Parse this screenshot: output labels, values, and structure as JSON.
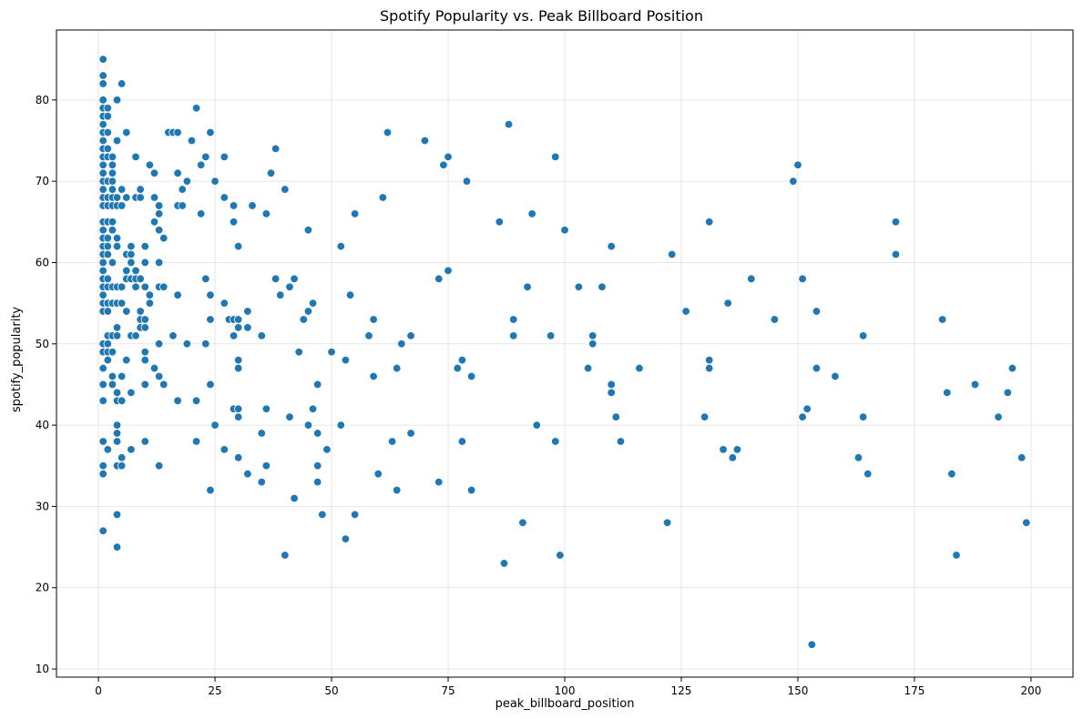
{
  "chart_data": {
    "type": "scatter",
    "title": "Spotify Popularity vs. Peak Billboard Position",
    "xlabel": "peak_billboard_position",
    "ylabel": "spotify_popularity",
    "xlim": [
      -9,
      209
    ],
    "ylim": [
      9,
      88.6
    ],
    "xticks": [
      0,
      25,
      50,
      75,
      100,
      125,
      150,
      175,
      200
    ],
    "yticks": [
      10,
      20,
      30,
      40,
      50,
      60,
      70,
      80
    ],
    "grid": true,
    "color": "#1f77b4",
    "points": [
      [
        1,
        85
      ],
      [
        1,
        83
      ],
      [
        1,
        82
      ],
      [
        1,
        80
      ],
      [
        1,
        79
      ],
      [
        1,
        78
      ],
      [
        1,
        77
      ],
      [
        1,
        76
      ],
      [
        1,
        75
      ],
      [
        1,
        74
      ],
      [
        1,
        73
      ],
      [
        1,
        72
      ],
      [
        1,
        71
      ],
      [
        1,
        70
      ],
      [
        1,
        69
      ],
      [
        1,
        68
      ],
      [
        1,
        67
      ],
      [
        1,
        65
      ],
      [
        1,
        64
      ],
      [
        1,
        63
      ],
      [
        1,
        62
      ],
      [
        1,
        61
      ],
      [
        1,
        60
      ],
      [
        1,
        59
      ],
      [
        1,
        58
      ],
      [
        1,
        57
      ],
      [
        1,
        56
      ],
      [
        1,
        55
      ],
      [
        1,
        54
      ],
      [
        1,
        50
      ],
      [
        1,
        49
      ],
      [
        1,
        47
      ],
      [
        1,
        45
      ],
      [
        1,
        43
      ],
      [
        1,
        38
      ],
      [
        1,
        35
      ],
      [
        1,
        34
      ],
      [
        1,
        27
      ],
      [
        2,
        79
      ],
      [
        2,
        78
      ],
      [
        2,
        76
      ],
      [
        2,
        74
      ],
      [
        2,
        73
      ],
      [
        2,
        70
      ],
      [
        2,
        68
      ],
      [
        2,
        67
      ],
      [
        2,
        65
      ],
      [
        2,
        63
      ],
      [
        2,
        62
      ],
      [
        2,
        61
      ],
      [
        2,
        58
      ],
      [
        2,
        57
      ],
      [
        2,
        55
      ],
      [
        2,
        54
      ],
      [
        2,
        51
      ],
      [
        2,
        50
      ],
      [
        2,
        49
      ],
      [
        2,
        48
      ],
      [
        2,
        37
      ],
      [
        3,
        73
      ],
      [
        3,
        72
      ],
      [
        3,
        71
      ],
      [
        3,
        70
      ],
      [
        3,
        69
      ],
      [
        3,
        68
      ],
      [
        3,
        67
      ],
      [
        3,
        65
      ],
      [
        3,
        64
      ],
      [
        3,
        60
      ],
      [
        3,
        57
      ],
      [
        3,
        55
      ],
      [
        3,
        51
      ],
      [
        3,
        49
      ],
      [
        3,
        46
      ],
      [
        3,
        45
      ],
      [
        4,
        80
      ],
      [
        4,
        75
      ],
      [
        4,
        68
      ],
      [
        4,
        67
      ],
      [
        4,
        63
      ],
      [
        4,
        62
      ],
      [
        4,
        57
      ],
      [
        4,
        55
      ],
      [
        4,
        52
      ],
      [
        4,
        51
      ],
      [
        4,
        44
      ],
      [
        4,
        43
      ],
      [
        4,
        40
      ],
      [
        4,
        39
      ],
      [
        4,
        38
      ],
      [
        4,
        35
      ],
      [
        4,
        29
      ],
      [
        4,
        25
      ],
      [
        5,
        82
      ],
      [
        5,
        69
      ],
      [
        5,
        67
      ],
      [
        5,
        57
      ],
      [
        5,
        55
      ],
      [
        5,
        46
      ],
      [
        5,
        43
      ],
      [
        5,
        36
      ],
      [
        5,
        35
      ],
      [
        6,
        76
      ],
      [
        6,
        68
      ],
      [
        6,
        61
      ],
      [
        6,
        59
      ],
      [
        6,
        58
      ],
      [
        6,
        54
      ],
      [
        6,
        48
      ],
      [
        7,
        62
      ],
      [
        7,
        61
      ],
      [
        7,
        60
      ],
      [
        7,
        58
      ],
      [
        7,
        51
      ],
      [
        7,
        44
      ],
      [
        7,
        37
      ],
      [
        8,
        73
      ],
      [
        8,
        68
      ],
      [
        8,
        59
      ],
      [
        8,
        58
      ],
      [
        8,
        57
      ],
      [
        8,
        51
      ],
      [
        9,
        69
      ],
      [
        9,
        68
      ],
      [
        9,
        58
      ],
      [
        9,
        54
      ],
      [
        9,
        53
      ],
      [
        9,
        52
      ],
      [
        10,
        62
      ],
      [
        10,
        60
      ],
      [
        10,
        57
      ],
      [
        10,
        53
      ],
      [
        10,
        52
      ],
      [
        10,
        49
      ],
      [
        10,
        48
      ],
      [
        10,
        45
      ],
      [
        10,
        38
      ],
      [
        11,
        72
      ],
      [
        11,
        56
      ],
      [
        11,
        55
      ],
      [
        12,
        71
      ],
      [
        12,
        68
      ],
      [
        12,
        65
      ],
      [
        12,
        47
      ],
      [
        13,
        67
      ],
      [
        13,
        66
      ],
      [
        13,
        64
      ],
      [
        13,
        60
      ],
      [
        13,
        57
      ],
      [
        13,
        50
      ],
      [
        13,
        46
      ],
      [
        13,
        35
      ],
      [
        14,
        63
      ],
      [
        14,
        57
      ],
      [
        14,
        45
      ],
      [
        15,
        76
      ],
      [
        16,
        76
      ],
      [
        16,
        51
      ],
      [
        17,
        76
      ],
      [
        17,
        71
      ],
      [
        17,
        67
      ],
      [
        17,
        56
      ],
      [
        17,
        43
      ],
      [
        18,
        69
      ],
      [
        18,
        67
      ],
      [
        19,
        70
      ],
      [
        19,
        50
      ],
      [
        20,
        75
      ],
      [
        21,
        79
      ],
      [
        21,
        43
      ],
      [
        21,
        38
      ],
      [
        22,
        72
      ],
      [
        22,
        66
      ],
      [
        23,
        73
      ],
      [
        23,
        58
      ],
      [
        23,
        50
      ],
      [
        24,
        76
      ],
      [
        24,
        56
      ],
      [
        24,
        53
      ],
      [
        24,
        45
      ],
      [
        24,
        32
      ],
      [
        25,
        70
      ],
      [
        25,
        40
      ],
      [
        27,
        73
      ],
      [
        27,
        68
      ],
      [
        27,
        55
      ],
      [
        27,
        37
      ],
      [
        28,
        53
      ],
      [
        29,
        67
      ],
      [
        29,
        65
      ],
      [
        29,
        53
      ],
      [
        29,
        51
      ],
      [
        29,
        42
      ],
      [
        30,
        62
      ],
      [
        30,
        53
      ],
      [
        30,
        52
      ],
      [
        30,
        48
      ],
      [
        30,
        47
      ],
      [
        30,
        42
      ],
      [
        30,
        41
      ],
      [
        30,
        36
      ],
      [
        32,
        54
      ],
      [
        32,
        52
      ],
      [
        32,
        34
      ],
      [
        33,
        67
      ],
      [
        35,
        51
      ],
      [
        35,
        39
      ],
      [
        35,
        33
      ],
      [
        36,
        66
      ],
      [
        36,
        42
      ],
      [
        36,
        35
      ],
      [
        37,
        71
      ],
      [
        38,
        74
      ],
      [
        38,
        58
      ],
      [
        39,
        56
      ],
      [
        40,
        69
      ],
      [
        40,
        24
      ],
      [
        41,
        57
      ],
      [
        41,
        41
      ],
      [
        42,
        58
      ],
      [
        42,
        31
      ],
      [
        43,
        49
      ],
      [
        44,
        53
      ],
      [
        45,
        64
      ],
      [
        45,
        54
      ],
      [
        45,
        40
      ],
      [
        46,
        55
      ],
      [
        46,
        42
      ],
      [
        47,
        45
      ],
      [
        47,
        39
      ],
      [
        47,
        35
      ],
      [
        47,
        33
      ],
      [
        48,
        29
      ],
      [
        49,
        37
      ],
      [
        50,
        49
      ],
      [
        52,
        62
      ],
      [
        52,
        40
      ],
      [
        53,
        48
      ],
      [
        53,
        26
      ],
      [
        54,
        56
      ],
      [
        55,
        66
      ],
      [
        55,
        29
      ],
      [
        58,
        51
      ],
      [
        59,
        53
      ],
      [
        59,
        46
      ],
      [
        60,
        34
      ],
      [
        61,
        68
      ],
      [
        62,
        76
      ],
      [
        63,
        38
      ],
      [
        64,
        47
      ],
      [
        64,
        32
      ],
      [
        65,
        50
      ],
      [
        67,
        51
      ],
      [
        67,
        39
      ],
      [
        70,
        75
      ],
      [
        73,
        58
      ],
      [
        73,
        33
      ],
      [
        74,
        72
      ],
      [
        75,
        73
      ],
      [
        75,
        59
      ],
      [
        77,
        47
      ],
      [
        78,
        48
      ],
      [
        78,
        38
      ],
      [
        79,
        70
      ],
      [
        80,
        46
      ],
      [
        80,
        32
      ],
      [
        86,
        65
      ],
      [
        87,
        23
      ],
      [
        88,
        77
      ],
      [
        89,
        53
      ],
      [
        89,
        51
      ],
      [
        91,
        28
      ],
      [
        92,
        57
      ],
      [
        93,
        66
      ],
      [
        94,
        40
      ],
      [
        97,
        51
      ],
      [
        98,
        73
      ],
      [
        98,
        38
      ],
      [
        99,
        24
      ],
      [
        100,
        64
      ],
      [
        103,
        57
      ],
      [
        105,
        47
      ],
      [
        106,
        51
      ],
      [
        106,
        50
      ],
      [
        108,
        57
      ],
      [
        110,
        62
      ],
      [
        110,
        45
      ],
      [
        110,
        44
      ],
      [
        111,
        41
      ],
      [
        112,
        38
      ],
      [
        116,
        47
      ],
      [
        122,
        28
      ],
      [
        123,
        61
      ],
      [
        126,
        54
      ],
      [
        130,
        41
      ],
      [
        131,
        65
      ],
      [
        131,
        48
      ],
      [
        131,
        47
      ],
      [
        134,
        37
      ],
      [
        135,
        55
      ],
      [
        136,
        36
      ],
      [
        137,
        37
      ],
      [
        140,
        58
      ],
      [
        145,
        53
      ],
      [
        149,
        70
      ],
      [
        150,
        72
      ],
      [
        151,
        58
      ],
      [
        151,
        41
      ],
      [
        152,
        42
      ],
      [
        153,
        13
      ],
      [
        154,
        54
      ],
      [
        154,
        47
      ],
      [
        158,
        46
      ],
      [
        163,
        36
      ],
      [
        164,
        51
      ],
      [
        164,
        41
      ],
      [
        165,
        34
      ],
      [
        171,
        65
      ],
      [
        171,
        61
      ],
      [
        181,
        53
      ],
      [
        182,
        44
      ],
      [
        183,
        34
      ],
      [
        184,
        24
      ],
      [
        188,
        45
      ],
      [
        193,
        41
      ],
      [
        195,
        44
      ],
      [
        196,
        47
      ],
      [
        198,
        36
      ],
      [
        199,
        28
      ]
    ]
  }
}
